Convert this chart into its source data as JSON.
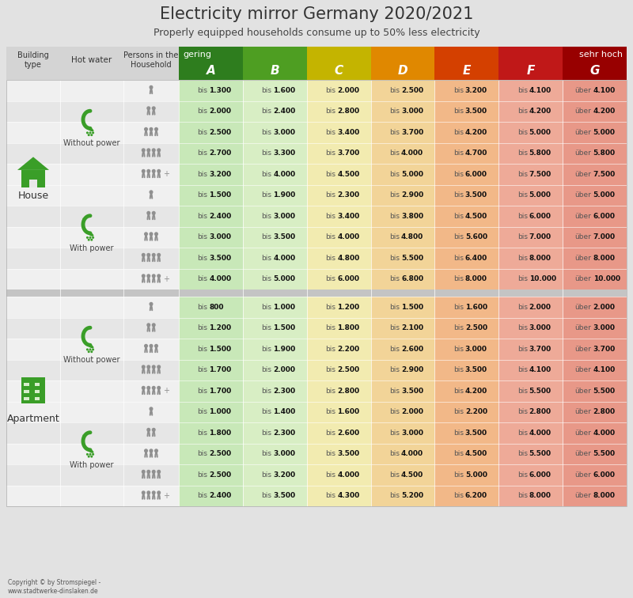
{
  "title": "Electricity mirror Germany 2020/2021",
  "subtitle": "Properly equipped households consume up to 50% less electricity",
  "col_headers": [
    "A",
    "B",
    "C",
    "D",
    "E",
    "F",
    "G"
  ],
  "col_dark_colors": [
    "#2e7d1e",
    "#4e9e22",
    "#c4b400",
    "#e08800",
    "#d44000",
    "#c01818",
    "#980000"
  ],
  "col_light_colors": [
    "#c8e8b8",
    "#d8eec4",
    "#f2ebb0",
    "#f2d498",
    "#f2b888",
    "#eeaa98",
    "#e89888"
  ],
  "bg_color": "#e2e2e2",
  "left_col_bg": "#d4d4d4",
  "row_colors": [
    "#f0f0f0",
    "#e6e6e6"
  ],
  "gap_color": "#c4c4c4",
  "green_icon": "#3a9e28",
  "sections": [
    {
      "building": "house",
      "hotwater": "without",
      "rows": [
        {
          "p": 1,
          "values": [
            "bis 1.300",
            "bis 1.600",
            "bis 2.000",
            "bis 2.500",
            "bis 3.200",
            "bis 4.100",
            "über 4.100"
          ]
        },
        {
          "p": 2,
          "values": [
            "bis 2.000",
            "bis 2.400",
            "bis 2.800",
            "bis 3.000",
            "bis 3.500",
            "bis 4.200",
            "über 4.200"
          ]
        },
        {
          "p": 3,
          "values": [
            "bis 2.500",
            "bis 3.000",
            "bis 3.400",
            "bis 3.700",
            "bis 4.200",
            "bis 5.000",
            "über 5.000"
          ]
        },
        {
          "p": 4,
          "values": [
            "bis 2.700",
            "bis 3.300",
            "bis 3.700",
            "bis 4.000",
            "bis 4.700",
            "bis 5.800",
            "über 5.800"
          ]
        },
        {
          "p": 5,
          "values": [
            "bis 3.200",
            "bis 4.000",
            "bis 4.500",
            "bis 5.000",
            "bis 6.000",
            "bis 7.500",
            "über 7.500"
          ]
        }
      ]
    },
    {
      "building": "house",
      "hotwater": "with",
      "rows": [
        {
          "p": 1,
          "values": [
            "bis 1.500",
            "bis 1.900",
            "bis 2.300",
            "bis 2.900",
            "bis 3.500",
            "bis 5.000",
            "über 5.000"
          ]
        },
        {
          "p": 2,
          "values": [
            "bis 2.400",
            "bis 3.000",
            "bis 3.400",
            "bis 3.800",
            "bis 4.500",
            "bis 6.000",
            "über 6.000"
          ]
        },
        {
          "p": 3,
          "values": [
            "bis 3.000",
            "bis 3.500",
            "bis 4.000",
            "bis 4.800",
            "bis 5.600",
            "bis 7.000",
            "über 7.000"
          ]
        },
        {
          "p": 4,
          "values": [
            "bis 3.500",
            "bis 4.000",
            "bis 4.800",
            "bis 5.500",
            "bis 6.400",
            "bis 8.000",
            "über 8.000"
          ]
        },
        {
          "p": 5,
          "values": [
            "bis 4.000",
            "bis 5.000",
            "bis 6.000",
            "bis 6.800",
            "bis 8.000",
            "bis 10.000",
            "über 10.000"
          ]
        }
      ]
    },
    {
      "building": "apartment",
      "hotwater": "without",
      "rows": [
        {
          "p": 1,
          "values": [
            "bis 800",
            "bis 1.000",
            "bis 1.200",
            "bis 1.500",
            "bis 1.600",
            "bis 2.000",
            "über 2.000"
          ]
        },
        {
          "p": 2,
          "values": [
            "bis 1.200",
            "bis 1.500",
            "bis 1.800",
            "bis 2.100",
            "bis 2.500",
            "bis 3.000",
            "über 3.000"
          ]
        },
        {
          "p": 3,
          "values": [
            "bis 1.500",
            "bis 1.900",
            "bis 2.200",
            "bis 2.600",
            "bis 3.000",
            "bis 3.700",
            "über 3.700"
          ]
        },
        {
          "p": 4,
          "values": [
            "bis 1.700",
            "bis 2.000",
            "bis 2.500",
            "bis 2.900",
            "bis 3.500",
            "bis 4.100",
            "über 4.100"
          ]
        },
        {
          "p": 5,
          "values": [
            "bis 1.700",
            "bis 2.300",
            "bis 2.800",
            "bis 3.500",
            "bis 4.200",
            "bis 5.500",
            "über 5.500"
          ]
        }
      ]
    },
    {
      "building": "apartment",
      "hotwater": "with",
      "rows": [
        {
          "p": 1,
          "values": [
            "bis 1.000",
            "bis 1.400",
            "bis 1.600",
            "bis 2.000",
            "bis 2.200",
            "bis 2.800",
            "über 2.800"
          ]
        },
        {
          "p": 2,
          "values": [
            "bis 1.800",
            "bis 2.300",
            "bis 2.600",
            "bis 3.000",
            "bis 3.500",
            "bis 4.000",
            "über 4.000"
          ]
        },
        {
          "p": 3,
          "values": [
            "bis 2.500",
            "bis 3.000",
            "bis 3.500",
            "bis 4.000",
            "bis 4.500",
            "bis 5.500",
            "über 5.500"
          ]
        },
        {
          "p": 4,
          "values": [
            "bis 2.500",
            "bis 3.200",
            "bis 4.000",
            "bis 4.500",
            "bis 5.000",
            "bis 6.000",
            "über 6.000"
          ]
        },
        {
          "p": 5,
          "values": [
            "bis 2.400",
            "bis 3.500",
            "bis 4.300",
            "bis 5.200",
            "bis 6.200",
            "bis 8.000",
            "über 8.000"
          ]
        }
      ]
    }
  ],
  "copyright": "Copyright © by Stromspiegel -\nwww.stadtwerke-dinslaken.de"
}
